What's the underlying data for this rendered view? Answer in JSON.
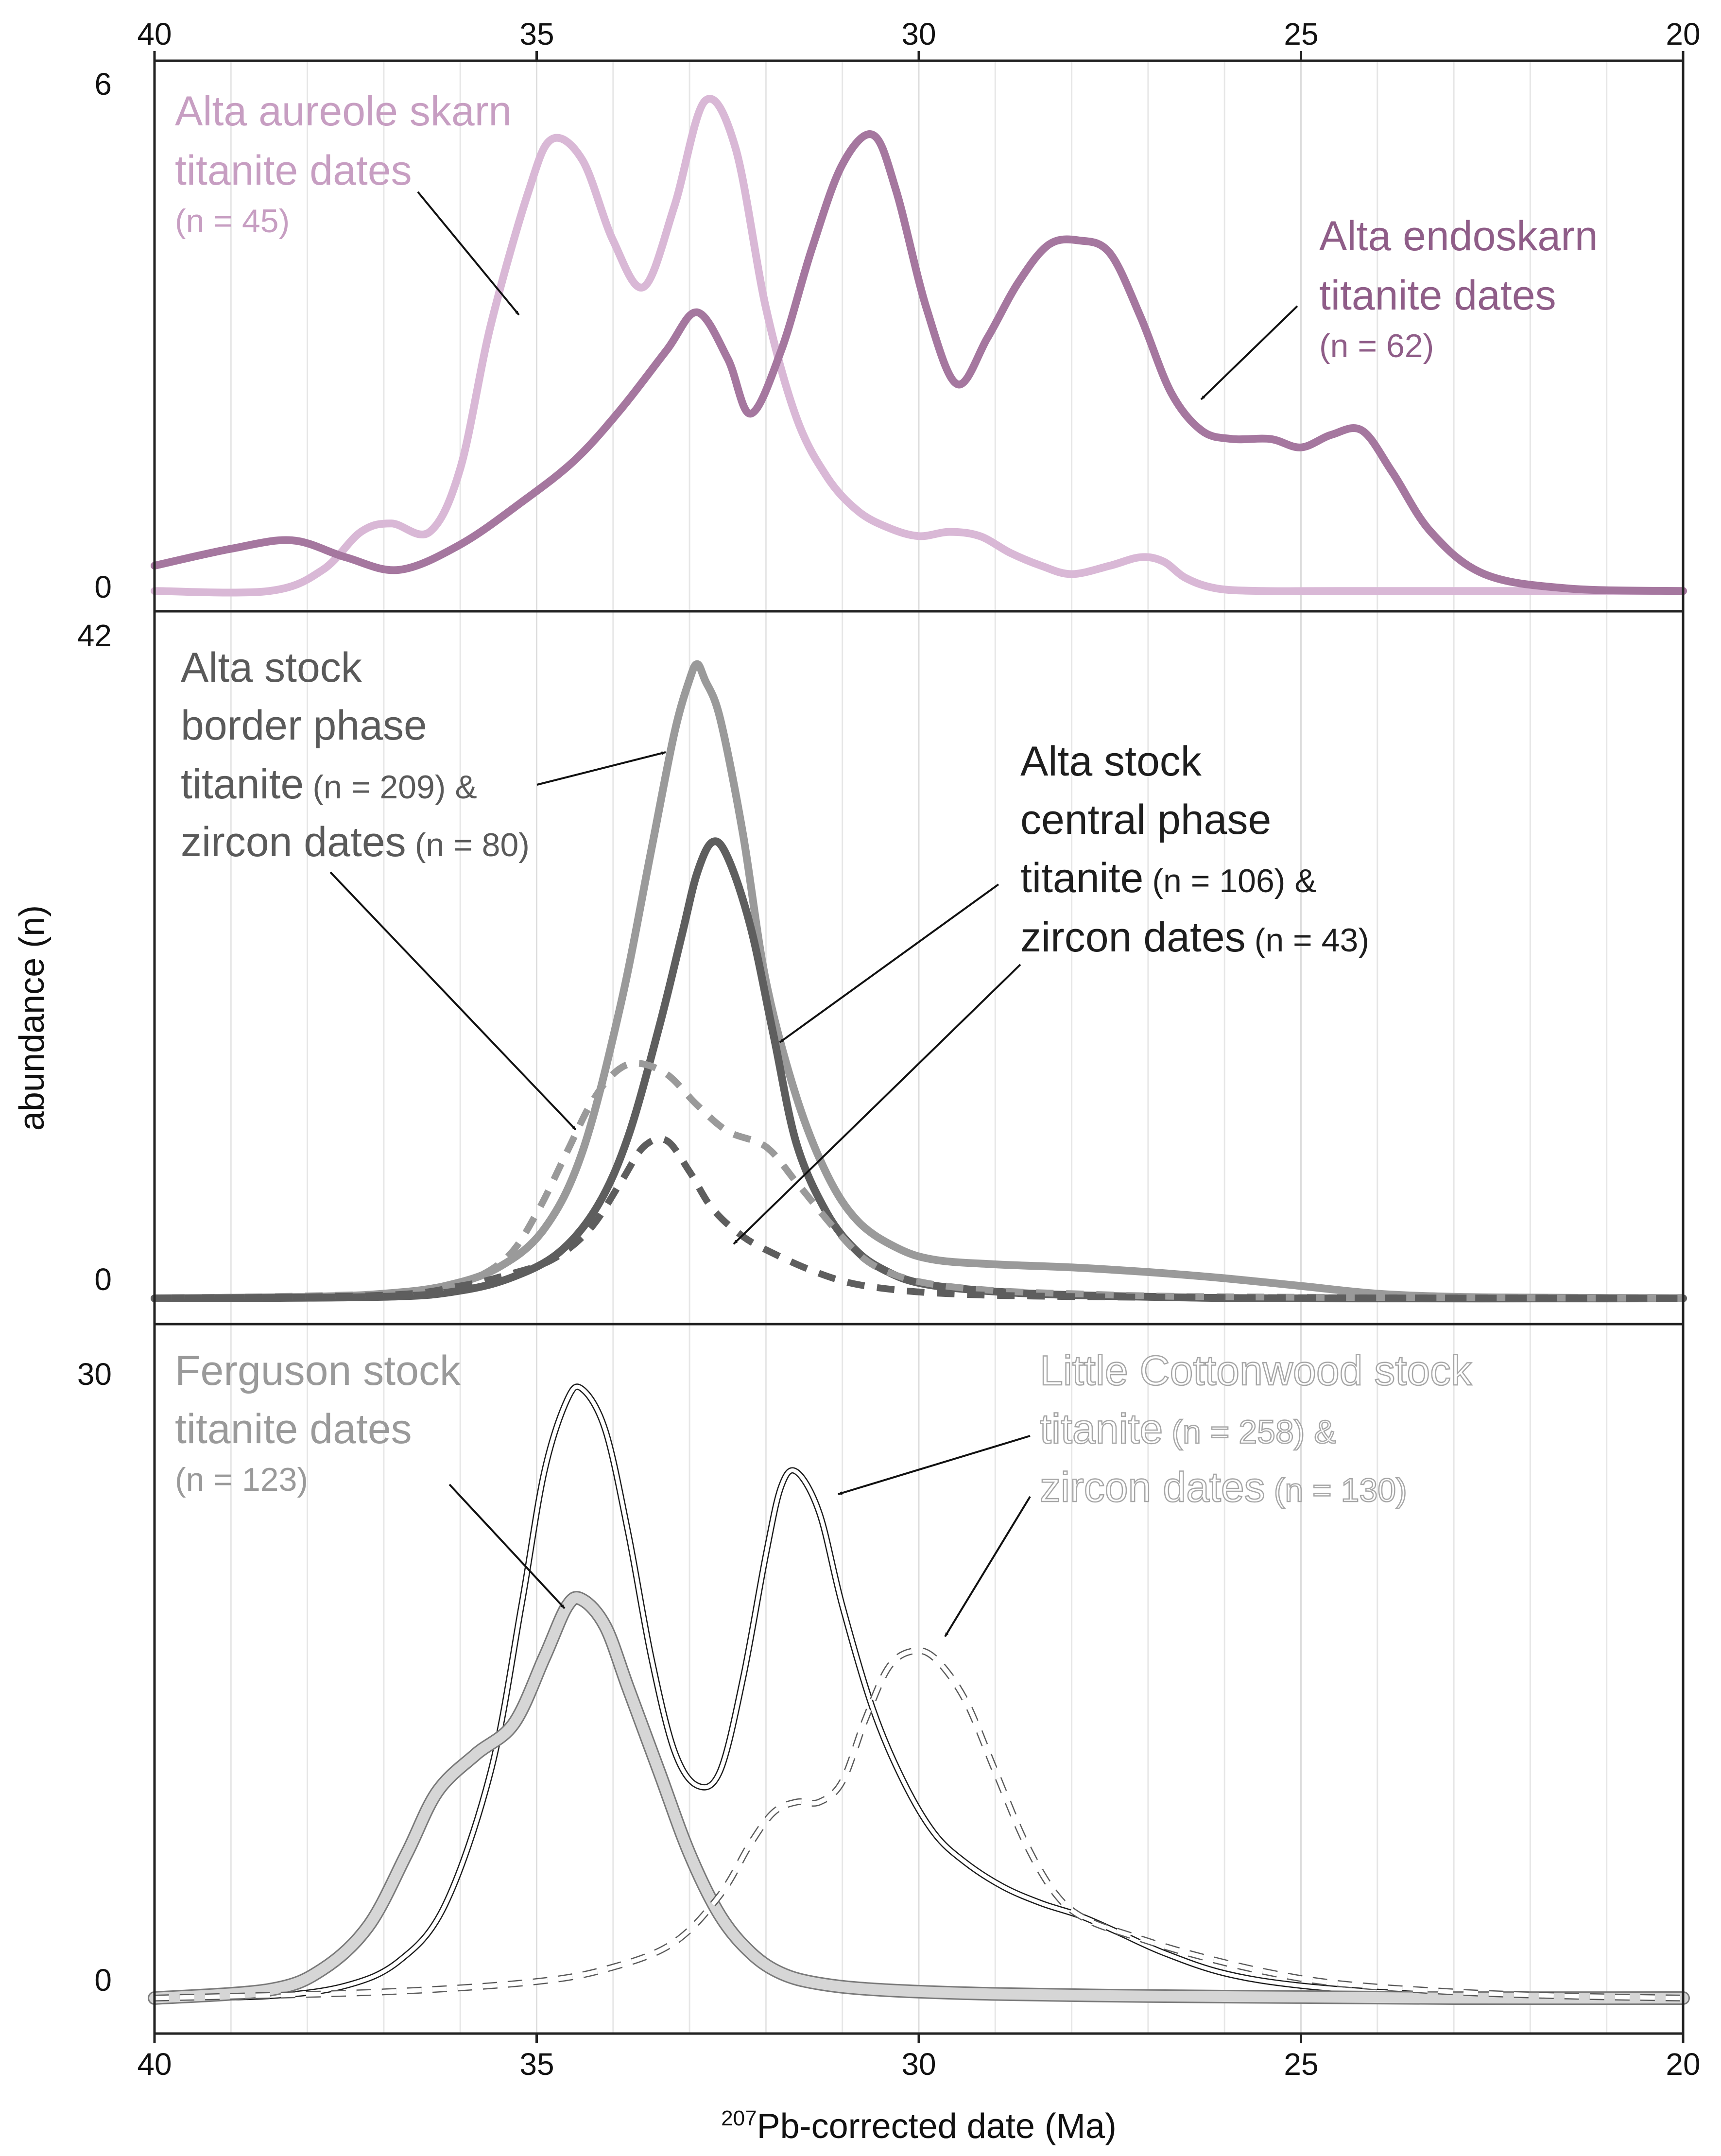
{
  "colors": {
    "aureole": "#d9b8d6",
    "endoskarn": "#a5779f",
    "border": "#9a9a9a",
    "central": "#5e5e5e",
    "ferguson_fill": "#d6d6d6",
    "frame": "#222222",
    "grid": "#e6e6e6"
  },
  "x_axis": {
    "title_sup": "207",
    "title_main": "Pb-corrected date (Ma)",
    "ticks": [
      40,
      35,
      30,
      25,
      20
    ],
    "tick_labels": [
      "40",
      "35",
      "30",
      "25",
      "20"
    ],
    "reversed": true
  },
  "y_axis": {
    "title": "abundance (n)"
  },
  "chart_data": [
    {
      "type": "line",
      "panel": "top",
      "xlim": [
        40,
        20
      ],
      "ylim": [
        0,
        6
      ],
      "ytick_labels": [
        "6",
        "0"
      ],
      "series": [
        {
          "name": "Alta aureole skarn titanite dates (n = 45)",
          "style": "solid-light-purple",
          "x": [
            40,
            38.5,
            37.8,
            37.3,
            36.9,
            36.4,
            36.0,
            35.6,
            35.1,
            34.8,
            34.4,
            34.0,
            33.6,
            33.2,
            32.8,
            32.4,
            32.0,
            31.6,
            31.2,
            30.8,
            30.4,
            30.0,
            29.6,
            29.2,
            28.8,
            28.4,
            28.0,
            27.5,
            27.1,
            26.8,
            26.5,
            26.1,
            25.5,
            24.5,
            20
          ],
          "y": [
            0.05,
            0.05,
            0.3,
            0.75,
            0.85,
            0.75,
            1.5,
            3.2,
            4.8,
            5.4,
            5.15,
            4.2,
            3.65,
            4.6,
            5.85,
            5.3,
            3.4,
            2.1,
            1.4,
            1.0,
            0.8,
            0.7,
            0.75,
            0.7,
            0.5,
            0.35,
            0.25,
            0.35,
            0.45,
            0.4,
            0.2,
            0.08,
            0.05,
            0.05,
            0.05
          ]
        },
        {
          "name": "Alta endoskarn titanite dates (n = 62)",
          "style": "solid-purple",
          "x": [
            40,
            39.0,
            38.2,
            37.5,
            36.8,
            36.0,
            35.2,
            34.5,
            33.9,
            33.3,
            32.9,
            32.5,
            32.2,
            31.8,
            31.4,
            31.0,
            30.6,
            30.3,
            29.9,
            29.5,
            29.1,
            28.7,
            28.3,
            27.9,
            27.5,
            27.1,
            26.7,
            26.3,
            25.9,
            25.4,
            25.0,
            24.6,
            24.2,
            23.8,
            23.3,
            22.6,
            21.5,
            20
          ],
          "y": [
            0.35,
            0.55,
            0.65,
            0.45,
            0.3,
            0.6,
            1.1,
            1.6,
            2.2,
            2.9,
            3.35,
            2.8,
            2.15,
            2.9,
            4.1,
            5.1,
            5.45,
            4.8,
            3.4,
            2.5,
            3.05,
            3.7,
            4.15,
            4.2,
            4.05,
            3.3,
            2.4,
            1.95,
            1.85,
            1.85,
            1.75,
            1.9,
            1.95,
            1.45,
            0.75,
            0.25,
            0.08,
            0.05
          ]
        }
      ],
      "annotations": [
        {
          "line1": "Alta aureole skarn",
          "line2": "titanite dates",
          "n": "(n = 45)"
        },
        {
          "line1": "Alta endoskarn",
          "line2": "titanite dates",
          "n": "(n = 62)"
        }
      ]
    },
    {
      "type": "line",
      "panel": "middle",
      "xlim": [
        40,
        20
      ],
      "ylim": [
        0,
        42
      ],
      "ytick_labels": [
        "42",
        "0"
      ],
      "series": [
        {
          "name": "Alta stock border phase titanite (n = 209)",
          "style": "solid-light-gray",
          "x": [
            40,
            38,
            37,
            36.2,
            35.5,
            34.9,
            34.4,
            33.9,
            33.5,
            33.2,
            33.0,
            32.9,
            32.8,
            32.6,
            32.3,
            32.0,
            31.6,
            31.2,
            30.8,
            30.3,
            29.8,
            29.0,
            28.0,
            27.0,
            26.0,
            25.0,
            24.0,
            23.0,
            22.0,
            20
          ],
          "y": [
            0,
            0.1,
            0.3,
            0.8,
            2.0,
            4.5,
            9.5,
            19,
            29,
            36.5,
            40,
            41,
            40,
            37.5,
            30,
            20.5,
            13,
            8,
            5,
            3.3,
            2.5,
            2.2,
            2.0,
            1.7,
            1.3,
            0.8,
            0.3,
            0.1,
            0.05,
            0
          ]
        },
        {
          "name": "Alta stock central phase titanite (n = 106)",
          "style": "solid-dark-gray",
          "x": [
            40,
            37,
            36,
            35.3,
            34.7,
            34.2,
            33.8,
            33.4,
            33.1,
            32.9,
            32.7,
            32.5,
            32.2,
            31.9,
            31.6,
            31.2,
            30.8,
            30.4,
            30.0,
            29.4,
            28.5,
            27.0,
            25.0,
            20
          ],
          "y": [
            0,
            0.1,
            0.5,
            1.4,
            3.0,
            6.0,
            10.5,
            17.5,
            23.5,
            27.5,
            29.5,
            28.5,
            24,
            17,
            10,
            5.5,
            3.0,
            1.7,
            1.0,
            0.6,
            0.3,
            0.1,
            0,
            0
          ]
        },
        {
          "name": "Alta stock border phase zircon dates (n = 80)",
          "style": "dashed-light-gray",
          "x": [
            40,
            37,
            36,
            35.4,
            35.0,
            34.6,
            34.3,
            34.0,
            33.7,
            33.3,
            32.9,
            32.5,
            32.0,
            31.6,
            31.1,
            30.7,
            30.3,
            29.8,
            29.0,
            28.0,
            26.0,
            20
          ],
          "y": [
            0,
            0.3,
            1.0,
            2.6,
            5.5,
            9.5,
            12.5,
            14.5,
            15.2,
            14.5,
            12.5,
            10.8,
            9.8,
            7.5,
            4.5,
            2.5,
            1.5,
            0.9,
            0.5,
            0.3,
            0.1,
            0
          ]
        },
        {
          "name": "Alta stock central phase zircon dates (n = 43)",
          "style": "dashed-dark-gray",
          "x": [
            40,
            37,
            36,
            35.4,
            34.8,
            34.3,
            33.9,
            33.6,
            33.3,
            33.0,
            32.7,
            32.3,
            31.9,
            31.4,
            30.9,
            30.3,
            29.6,
            28.5,
            26.0,
            20
          ],
          "y": [
            0,
            0.2,
            0.8,
            1.5,
            2.5,
            4.5,
            7.5,
            9.8,
            10.2,
            8.2,
            5.8,
            4.0,
            2.9,
            1.8,
            1.0,
            0.55,
            0.3,
            0.15,
            0.05,
            0
          ]
        }
      ],
      "annotations": [
        {
          "line1": "Alta stock",
          "line2": "border phase",
          "line3a": "titanite",
          "line3b": "(n = 209) &",
          "line4a": "zircon dates",
          "line4b": "(n = 80)"
        },
        {
          "line1": "Alta stock",
          "line2": "central phase",
          "line3a": "titanite",
          "line3b": "(n = 106) &",
          "line4a": "zircon dates",
          "line4b": "(n = 43)"
        }
      ]
    },
    {
      "type": "line",
      "panel": "bottom",
      "xlim": [
        40,
        20
      ],
      "ylim": [
        0,
        30
      ],
      "ytick_labels": [
        "30",
        "0"
      ],
      "series": [
        {
          "name": "Little Cottonwood stock titanite (n = 258)",
          "style": "double-line-white",
          "x": [
            40,
            38.5,
            37.5,
            36.8,
            36.2,
            35.6,
            35.2,
            34.9,
            34.6,
            34.4,
            34.1,
            33.8,
            33.5,
            33.2,
            32.9,
            32.6,
            32.3,
            32.0,
            31.8,
            31.6,
            31.3,
            31.0,
            30.6,
            30.2,
            29.8,
            29.4,
            28.9,
            28.4,
            27.9,
            27.4,
            26.8,
            26.0,
            25.0,
            23.5,
            22.0,
            20
          ],
          "y": [
            0,
            0.1,
            0.6,
            1.8,
            4.5,
            11,
            19,
            25.5,
            29,
            29.5,
            27.5,
            22.5,
            16.5,
            12,
            10.3,
            11,
            15.5,
            21.5,
            24.8,
            25.5,
            23.5,
            19,
            14,
            10.5,
            8.0,
            6.6,
            5.4,
            4.6,
            4.0,
            3.2,
            2.2,
            1.2,
            0.6,
            0.2,
            0.05,
            0
          ]
        },
        {
          "name": "Ferguson stock titanite dates (n = 123)",
          "style": "thick-light-gray-outlined",
          "x": [
            40,
            38.5,
            37.8,
            37.2,
            36.7,
            36.3,
            35.8,
            35.3,
            34.9,
            34.6,
            34.4,
            34.1,
            33.8,
            33.4,
            33.0,
            32.6,
            32.2,
            31.8,
            31.3,
            30.5,
            29.0,
            27.0,
            25.0,
            23.0,
            20
          ],
          "y": [
            0,
            0.4,
            1.4,
            3.5,
            7.0,
            10.0,
            11.8,
            13.3,
            16.5,
            19.0,
            19.3,
            18.0,
            15.0,
            11.0,
            7.0,
            4.0,
            2.2,
            1.2,
            0.7,
            0.4,
            0.2,
            0.1,
            0.05,
            0,
            0
          ]
        },
        {
          "name": "Little Cottonwood stock zircon dates (n = 130)",
          "style": "dashed-outline-white",
          "x": [
            40,
            37,
            35,
            34,
            33.2,
            32.6,
            32.2,
            31.9,
            31.6,
            31.3,
            31.0,
            30.7,
            30.4,
            30.1,
            29.8,
            29.4,
            29.0,
            28.6,
            28.2,
            27.8,
            27.2,
            26.5,
            25.5,
            24.5,
            23.0,
            21.5,
            20
          ],
          "y": [
            0,
            0.3,
            0.8,
            1.5,
            2.7,
            5.0,
            7.5,
            9.0,
            9.5,
            9.5,
            10.5,
            13.5,
            16.0,
            16.8,
            16.5,
            14.5,
            11.0,
            7.5,
            5.0,
            3.8,
            3.0,
            2.2,
            1.3,
            0.7,
            0.3,
            0.1,
            0
          ]
        }
      ],
      "annotations": [
        {
          "line1": "Ferguson stock",
          "line2": "titanite dates",
          "n": "(n = 123)"
        },
        {
          "line1": "Little Cottonwood stock",
          "line2a": "titanite",
          "line2b": "(n = 258) &",
          "line3a": "zircon dates",
          "line3b": "(n = 130)"
        }
      ]
    }
  ]
}
